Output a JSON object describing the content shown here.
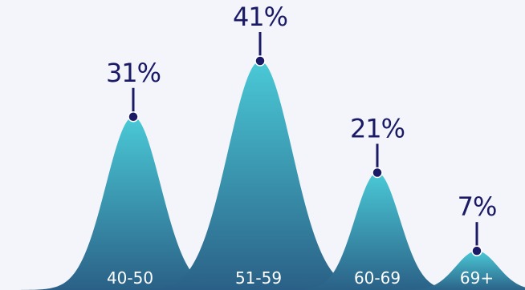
{
  "chart_data": {
    "type": "area",
    "categories": [
      "40-50",
      "51-59",
      "60-69",
      "69+"
    ],
    "values": [
      31,
      41,
      21,
      7
    ],
    "data_labels": [
      "31%",
      "41%",
      "21%",
      "7%"
    ],
    "title": "",
    "xlabel": "",
    "ylabel": "",
    "ylim": [
      0,
      41
    ],
    "grid": false,
    "legend": "none"
  },
  "colors": {
    "background": "#f4f5fb",
    "fill_top": "#4ac9d6",
    "fill_bottom": "#2a5f86",
    "label_text": "#1a1a66",
    "category_text": "#ffffff",
    "marker": "#1a1a66"
  }
}
